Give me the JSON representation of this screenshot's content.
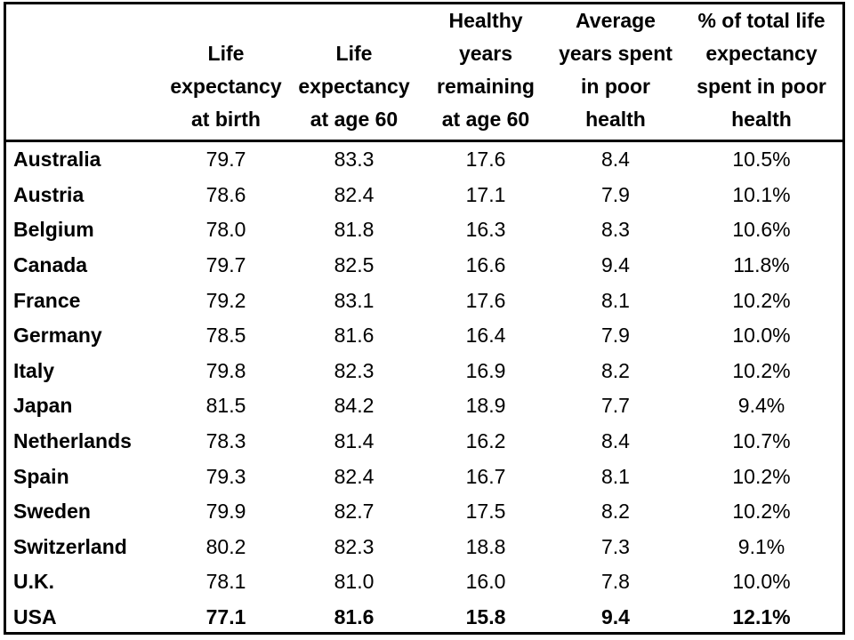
{
  "chart_data": {
    "type": "table",
    "columns": [
      {
        "key": "country",
        "label_lines": [
          ""
        ]
      },
      {
        "key": "le_birth",
        "label_lines": [
          "Life",
          "expectancy",
          "at birth"
        ]
      },
      {
        "key": "le_60",
        "label_lines": [
          "Life",
          "expectancy",
          "at age 60"
        ]
      },
      {
        "key": "healthy_60",
        "label_lines": [
          "Healthy",
          "years",
          "remaining",
          "at age 60"
        ]
      },
      {
        "key": "poor_years",
        "label_lines": [
          "Average",
          "years spent",
          "in poor",
          "health"
        ]
      },
      {
        "key": "poor_pct",
        "label_lines": [
          "% of total life",
          "expectancy",
          "spent in poor",
          "health"
        ]
      }
    ],
    "rows": [
      [
        "Australia",
        "79.7",
        "83.3",
        "17.6",
        "8.4",
        "10.5%"
      ],
      [
        "Austria",
        "78.6",
        "82.4",
        "17.1",
        "7.9",
        "10.1%"
      ],
      [
        "Belgium",
        "78.0",
        "81.8",
        "16.3",
        "8.3",
        "10.6%"
      ],
      [
        "Canada",
        "79.7",
        "82.5",
        "16.6",
        "9.4",
        "11.8%"
      ],
      [
        "France",
        "79.2",
        "83.1",
        "17.6",
        "8.1",
        "10.2%"
      ],
      [
        "Germany",
        "78.5",
        "81.6",
        "16.4",
        "7.9",
        "10.0%"
      ],
      [
        "Italy",
        "79.8",
        "82.3",
        "16.9",
        "8.2",
        "10.2%"
      ],
      [
        "Japan",
        "81.5",
        "84.2",
        "18.9",
        "7.7",
        "9.4%"
      ],
      [
        "Netherlands",
        "78.3",
        "81.4",
        "16.2",
        "8.4",
        "10.7%"
      ],
      [
        "Spain",
        "79.3",
        "82.4",
        "16.7",
        "8.1",
        "10.2%"
      ],
      [
        "Sweden",
        "79.9",
        "82.7",
        "17.5",
        "8.2",
        "10.2%"
      ],
      [
        "Switzerland",
        "80.2",
        "82.3",
        "18.8",
        "7.3",
        "9.1%"
      ],
      [
        "U.K.",
        "78.1",
        "81.0",
        "16.0",
        "7.8",
        "10.0%"
      ],
      [
        "USA",
        "77.1",
        "81.6",
        "15.8",
        "9.4",
        "12.1%"
      ]
    ],
    "emphasized_row": "USA"
  }
}
